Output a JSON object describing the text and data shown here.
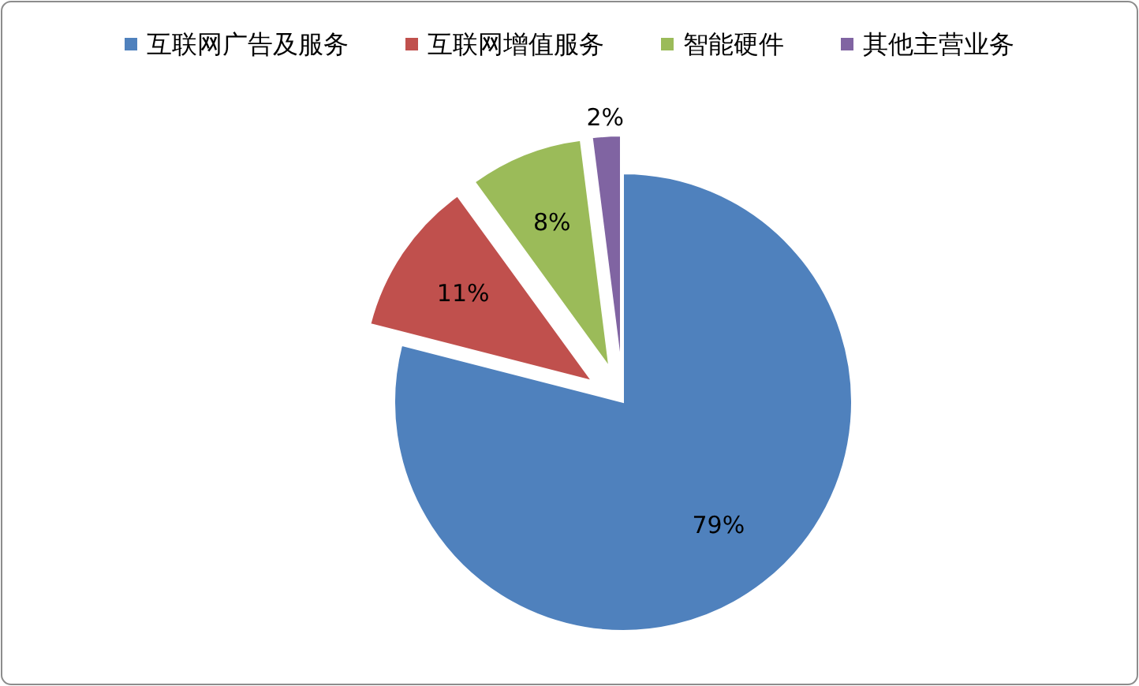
{
  "chart_data": {
    "type": "pie",
    "categories": [
      "互联网广告及服务",
      "互联网增值服务",
      "智能硬件",
      "其他主营业务"
    ],
    "values": [
      79,
      11,
      8,
      2
    ],
    "colors": [
      "#4f81bd",
      "#c0504d",
      "#9bbb59",
      "#8064a2"
    ],
    "value_labels": [
      "79%",
      "11%",
      "8%",
      "2%"
    ],
    "legend": "top"
  }
}
